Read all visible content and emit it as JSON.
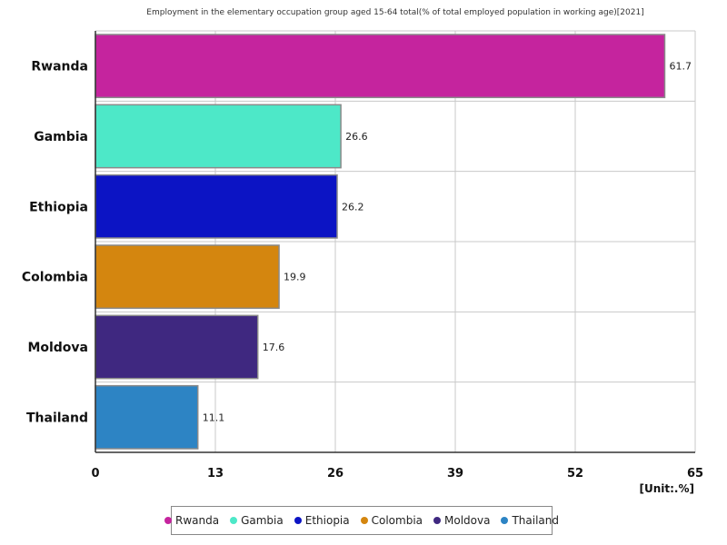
{
  "chart_data": {
    "type": "bar",
    "orientation": "horizontal",
    "title": "Employment in the elementary occupation group aged 15-64 total(% of total employed population in working age)[2021]",
    "categories": [
      "Rwanda",
      "Gambia",
      "Ethiopia",
      "Colombia",
      "Moldova",
      "Thailand"
    ],
    "values": [
      61.7,
      26.6,
      26.2,
      19.9,
      17.6,
      11.1
    ],
    "value_labels": [
      "61.7",
      "26.6",
      "26.2",
      "19.9",
      "17.6",
      "11.1"
    ],
    "colors": [
      "#c5249e",
      "#4de8c8",
      "#0c14c4",
      "#d4860f",
      "#3f2880",
      "#2d84c4"
    ],
    "xlim": [
      0,
      65
    ],
    "xticks": [
      "0",
      "13",
      "26",
      "39",
      "52",
      "65"
    ],
    "unit_label": "[Unit:.%]",
    "grid": true,
    "legend_position": "bottom"
  },
  "legend": {
    "items": [
      {
        "label": "Rwanda",
        "color": "#c5249e"
      },
      {
        "label": "Gambia",
        "color": "#4de8c8"
      },
      {
        "label": "Ethiopia",
        "color": "#0c14c4"
      },
      {
        "label": "Colombia",
        "color": "#d4860f"
      },
      {
        "label": "Moldova",
        "color": "#3f2880"
      },
      {
        "label": "Thailand",
        "color": "#2d84c4"
      }
    ]
  }
}
